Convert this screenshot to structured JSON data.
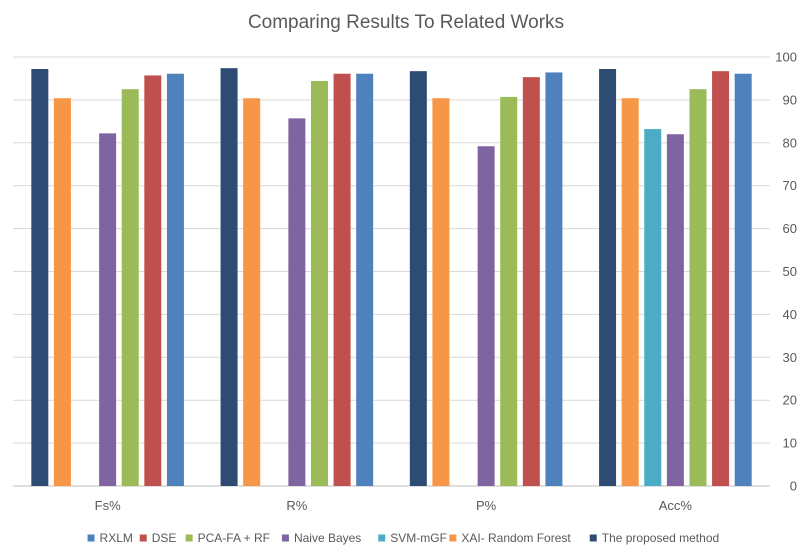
{
  "chart_data": {
    "type": "bar",
    "title": "Comparing Results To Related Works",
    "xlabel": "",
    "ylabel": "",
    "ylim": [
      0,
      100
    ],
    "yticks": [
      0,
      10,
      20,
      30,
      40,
      50,
      60,
      70,
      80,
      90,
      100
    ],
    "y_axis_side": "right",
    "grid": true,
    "legend_position": "bottom",
    "categories": [
      "Fs%",
      "R%",
      "P%",
      "Acc%"
    ],
    "series": [
      {
        "name": "The proposed method",
        "color": "#2E4B74",
        "values": [
          97.2,
          97.4,
          96.7,
          97.2
        ]
      },
      {
        "name": "XAI- Random Forest",
        "color": "#F79646",
        "values": [
          90.4,
          90.4,
          90.4,
          90.4
        ]
      },
      {
        "name": "SVM-mGF",
        "color": "#4BACC6",
        "values": [
          null,
          null,
          null,
          83.2
        ]
      },
      {
        "name": "Naive Bayes",
        "color": "#8064A2",
        "values": [
          82.2,
          85.7,
          79.2,
          82.0
        ]
      },
      {
        "name": "PCA-FA + RF",
        "color": "#9BBB59",
        "values": [
          92.5,
          94.4,
          90.7,
          92.5
        ]
      },
      {
        "name": "DSE",
        "color": "#C0504D",
        "values": [
          95.7,
          96.1,
          95.3,
          96.7
        ]
      },
      {
        "name": "RXLM",
        "color": "#4F81BD",
        "values": [
          96.1,
          96.1,
          96.4,
          96.1
        ]
      }
    ],
    "legend_order": [
      "RXLM",
      "DSE",
      "PCA-FA + RF",
      "Naive Bayes",
      "SVM-mGF",
      "XAI- Random Forest",
      "The proposed method"
    ]
  }
}
